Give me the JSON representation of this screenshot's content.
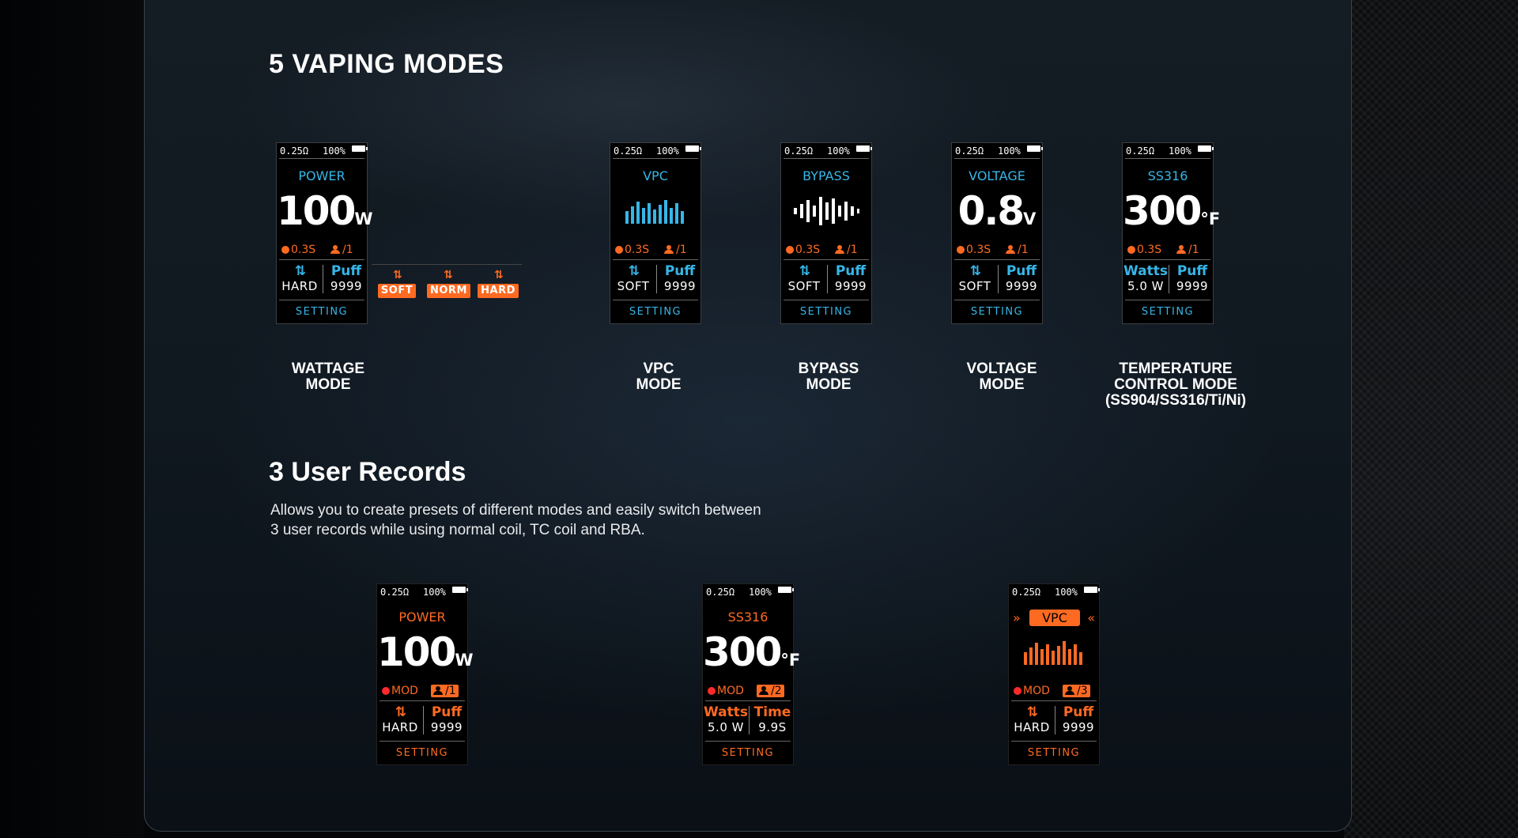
{
  "sections": {
    "modes_title": "5 VAPING MODES",
    "records_title": "3 User Records",
    "records_desc": [
      "Allows you to create presets of different modes and easily switch between",
      "3 user records while using normal coil, TC coil and RBA."
    ]
  },
  "presets": [
    "SOFT",
    "NORM",
    "HARD"
  ],
  "colors": {
    "cyan": "#36b6e8",
    "orange": "#ff6a22",
    "background": "#0f161d"
  },
  "modes": [
    {
      "caption": [
        "WATTAGE",
        "MODE"
      ],
      "screen": {
        "ohm": "0.25Ω",
        "battery": "100%",
        "mode": "POWER",
        "value": "100",
        "unit": "W",
        "timer": "0.3S",
        "user": "1",
        "left_top": "arrows-icon",
        "left_bottom": "HARD",
        "right_top": "Puff",
        "right_bottom": "9999",
        "setting": "SETTING"
      }
    },
    {
      "caption": [
        "VPC",
        "MODE"
      ],
      "screen": {
        "ohm": "0.25Ω",
        "battery": "100%",
        "mode": "VPC",
        "timer": "0.3S",
        "user": "1",
        "left_bottom": "SOFT",
        "right_top": "Puff",
        "right_bottom": "9999",
        "setting": "SETTING"
      }
    },
    {
      "caption": [
        "BYPASS",
        "MODE"
      ],
      "screen": {
        "ohm": "0.25Ω",
        "battery": "100%",
        "mode": "BYPASS",
        "timer": "0.3S",
        "user": "1",
        "left_bottom": "SOFT",
        "right_top": "Puff",
        "right_bottom": "9999",
        "setting": "SETTING"
      }
    },
    {
      "caption": [
        "VOLTAGE",
        "MODE"
      ],
      "screen": {
        "ohm": "0.25Ω",
        "battery": "100%",
        "mode": "VOLTAGE",
        "value": "0.8",
        "unit": "V",
        "timer": "0.3S",
        "user": "1",
        "left_bottom": "SOFT",
        "right_top": "Puff",
        "right_bottom": "9999",
        "setting": "SETTING"
      }
    },
    {
      "caption": [
        "TEMPERATURE",
        "CONTROL MODE",
        "(SS904/SS316/Ti/Ni)"
      ],
      "screen": {
        "ohm": "0.25Ω",
        "battery": "100%",
        "mode": "SS316",
        "value": "300",
        "unit": "°F",
        "timer": "0.3S",
        "user": "1",
        "left_top": "Watts",
        "left_bottom": "5.0 W",
        "right_top": "Puff",
        "right_bottom": "9999",
        "setting": "SETTING"
      }
    }
  ],
  "records": [
    {
      "ohm": "0.25Ω",
      "battery": "100%",
      "mode": "POWER",
      "value": "100",
      "unit": "W",
      "mod": "MOD",
      "user": "1",
      "left_bottom": "HARD",
      "right_top": "Puff",
      "right_bottom": "9999",
      "setting": "SETTING"
    },
    {
      "ohm": "0.25Ω",
      "battery": "100%",
      "mode": "SS316",
      "value": "300",
      "unit": "°F",
      "mod": "MOD",
      "user": "2",
      "left_top": "Watts",
      "left_bottom": "5.0 W",
      "right_top": "Time",
      "right_bottom": "9.9S",
      "setting": "SETTING"
    },
    {
      "ohm": "0.25Ω",
      "battery": "100%",
      "mode": "VPC",
      "mod": "MOD",
      "user": "3",
      "left_bottom": "HARD",
      "right_top": "Puff",
      "right_bottom": "9999",
      "setting": "SETTING"
    }
  ]
}
